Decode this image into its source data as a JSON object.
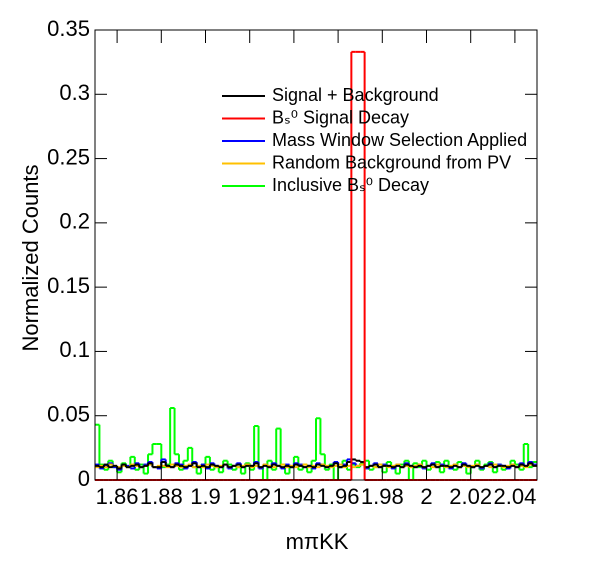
{
  "chart_data": {
    "type": "histogram",
    "xlabel": "mπKK",
    "ylabel": "Normalized Counts",
    "xlim": [
      1.85,
      2.05
    ],
    "ylim": [
      0,
      0.35
    ],
    "xticks": [
      1.86,
      1.88,
      1.9,
      1.92,
      1.94,
      1.96,
      1.98,
      2,
      2.02,
      2.04
    ],
    "yticks": [
      0,
      0.05,
      0.1,
      0.15,
      0.2,
      0.25,
      0.3,
      0.35
    ],
    "legend": "top-right",
    "bins": [
      1.85,
      1.852,
      1.854,
      1.856,
      1.858,
      1.86,
      1.862,
      1.864,
      1.866,
      1.868,
      1.87,
      1.872,
      1.874,
      1.876,
      1.878,
      1.88,
      1.882,
      1.884,
      1.886,
      1.888,
      1.89,
      1.892,
      1.894,
      1.896,
      1.898,
      1.9,
      1.902,
      1.904,
      1.906,
      1.908,
      1.91,
      1.912,
      1.914,
      1.916,
      1.918,
      1.92,
      1.922,
      1.924,
      1.926,
      1.928,
      1.93,
      1.932,
      1.934,
      1.936,
      1.938,
      1.94,
      1.942,
      1.944,
      1.946,
      1.948,
      1.95,
      1.952,
      1.954,
      1.956,
      1.958,
      1.96,
      1.962,
      1.964,
      1.966,
      1.968,
      1.97,
      1.972,
      1.974,
      1.976,
      1.978,
      1.98,
      1.982,
      1.984,
      1.986,
      1.988,
      1.99,
      1.992,
      1.994,
      1.996,
      1.998,
      2,
      2.002,
      2.004,
      2.006,
      2.008,
      2.01,
      2.012,
      2.014,
      2.016,
      2.018,
      2.02,
      2.022,
      2.024,
      2.026,
      2.028,
      2.03,
      2.032,
      2.034,
      2.036,
      2.038,
      2.04,
      2.042,
      2.044,
      2.046,
      2.048,
      2.05
    ],
    "series": [
      {
        "name": "Signal + Background",
        "color": "#000000",
        "values": [
          0.011,
          0.01,
          0.012,
          0.01,
          0.011,
          0.009,
          0.012,
          0.01,
          0.011,
          0.012,
          0.01,
          0.011,
          0.013,
          0.01,
          0.01,
          0.014,
          0.011,
          0.01,
          0.012,
          0.011,
          0.01,
          0.011,
          0.013,
          0.01,
          0.011,
          0.01,
          0.012,
          0.011,
          0.01,
          0.012,
          0.01,
          0.011,
          0.012,
          0.01,
          0.011,
          0.011,
          0.013,
          0.01,
          0.011,
          0.01,
          0.012,
          0.011,
          0.01,
          0.011,
          0.01,
          0.012,
          0.011,
          0.01,
          0.011,
          0.01,
          0.012,
          0.011,
          0.01,
          0.011,
          0.013,
          0.01,
          0.011,
          0.014,
          0.016,
          0.015,
          0.014,
          0.01,
          0.011,
          0.012,
          0.01,
          0.011,
          0.011,
          0.01,
          0.011,
          0.01,
          0.012,
          0.011,
          0.01,
          0.011,
          0.01,
          0.011,
          0.012,
          0.01,
          0.011,
          0.011,
          0.01,
          0.011,
          0.01,
          0.012,
          0.011,
          0.01,
          0.011,
          0.01,
          0.011,
          0.012,
          0.01,
          0.011,
          0.011,
          0.01,
          0.011,
          0.01,
          0.012,
          0.011,
          0.013,
          0.011
        ]
      },
      {
        "name": "Bₛ⁰ Signal Decay",
        "color": "#ff0000",
        "values": [
          0,
          0,
          0,
          0,
          0,
          0,
          0,
          0,
          0,
          0,
          0,
          0,
          0,
          0,
          0,
          0,
          0,
          0,
          0,
          0,
          0,
          0,
          0,
          0,
          0,
          0,
          0,
          0,
          0,
          0,
          0,
          0,
          0,
          0,
          0,
          0,
          0,
          0,
          0,
          0,
          0,
          0,
          0,
          0,
          0,
          0,
          0,
          0,
          0,
          0,
          0,
          0,
          0,
          0,
          0,
          0,
          0,
          0,
          0.333,
          0.333,
          0.333,
          0,
          0,
          0,
          0,
          0,
          0,
          0,
          0,
          0,
          0,
          0,
          0,
          0,
          0,
          0,
          0,
          0,
          0,
          0,
          0,
          0,
          0,
          0,
          0,
          0,
          0,
          0,
          0,
          0,
          0,
          0,
          0,
          0,
          0,
          0,
          0,
          0,
          0,
          0
        ]
      },
      {
        "name": "Mass Window Selection Applied",
        "color": "#0000ff",
        "values": [
          0.012,
          0.009,
          0.011,
          0.013,
          0.01,
          0.008,
          0.012,
          0.011,
          0.009,
          0.013,
          0.01,
          0.012,
          0.014,
          0.01,
          0.009,
          0.016,
          0.011,
          0.01,
          0.013,
          0.012,
          0.009,
          0.011,
          0.014,
          0.01,
          0.012,
          0.009,
          0.013,
          0.011,
          0.01,
          0.012,
          0.009,
          0.011,
          0.013,
          0.01,
          0.012,
          0.011,
          0.014,
          0.009,
          0.012,
          0.01,
          0.013,
          0.011,
          0.009,
          0.012,
          0.01,
          0.013,
          0.012,
          0.01,
          0.011,
          0.009,
          0.013,
          0.012,
          0.01,
          0.011,
          0.014,
          0.01,
          0.012,
          0.016,
          0.013,
          0.011,
          0.012,
          0.009,
          0.011,
          0.013,
          0.01,
          0.012,
          0.011,
          0.009,
          0.012,
          0.01,
          0.013,
          0.011,
          0.01,
          0.012,
          0.009,
          0.011,
          0.013,
          0.01,
          0.012,
          0.011,
          0.009,
          0.012,
          0.01,
          0.013,
          0.011,
          0.01,
          0.012,
          0.009,
          0.011,
          0.013,
          0.01,
          0.012,
          0.011,
          0.009,
          0.012,
          0.01,
          0.013,
          0.011,
          0.014,
          0.012
        ]
      },
      {
        "name": "Random Background from PV",
        "color": "#ffc000",
        "values": [
          0.01,
          0.011,
          0.01,
          0.012,
          0.011,
          0.01,
          0.011,
          0.01,
          0.012,
          0.011,
          0.01,
          0.011,
          0.012,
          0.01,
          0.011,
          0.011,
          0.01,
          0.012,
          0.011,
          0.01,
          0.011,
          0.012,
          0.01,
          0.011,
          0.01,
          0.012,
          0.011,
          0.01,
          0.011,
          0.012,
          0.01,
          0.011,
          0.01,
          0.011,
          0.012,
          0.01,
          0.011,
          0.01,
          0.012,
          0.011,
          0.01,
          0.011,
          0.012,
          0.01,
          0.011,
          0.01,
          0.011,
          0.012,
          0.01,
          0.011,
          0.01,
          0.012,
          0.011,
          0.01,
          0.011,
          0.012,
          0.01,
          0.011,
          0.01,
          0.011,
          0.012,
          0.01,
          0.011,
          0.01,
          0.012,
          0.011,
          0.01,
          0.011,
          0.012,
          0.01,
          0.011,
          0.01,
          0.011,
          0.012,
          0.01,
          0.011,
          0.01,
          0.012,
          0.011,
          0.01,
          0.011,
          0.012,
          0.01,
          0.011,
          0.01,
          0.011,
          0.012,
          0.01,
          0.011,
          0.01,
          0.012,
          0.011,
          0.01,
          0.011,
          0.012,
          0.01,
          0.011,
          0.01,
          0.012,
          0.011
        ]
      },
      {
        "name": "Inclusive Bₛ⁰ Decay",
        "color": "#00ff00",
        "values": [
          0.043,
          0.012,
          0.008,
          0.015,
          0.01,
          0.006,
          0.013,
          0.01,
          0.018,
          0.008,
          0.012,
          0.005,
          0.02,
          0.028,
          0.028,
          0.01,
          0.012,
          0.056,
          0.02,
          0.008,
          0.015,
          0.025,
          0.01,
          0.005,
          0.012,
          0.018,
          0.008,
          0.01,
          0.006,
          0.015,
          0.012,
          0.008,
          0.01,
          0.005,
          0.013,
          0.008,
          0.042,
          0.01,
          0,
          0.015,
          0.008,
          0.04,
          0.012,
          0.005,
          0.01,
          0.018,
          0.008,
          0.012,
          0.006,
          0.015,
          0.048,
          0.02,
          0.008,
          0.012,
          0,
          0.01,
          0.015,
          0.008,
          0.012,
          0.01,
          0.013,
          0.015,
          0.008,
          0.01,
          0.012,
          0.006,
          0.014,
          0.01,
          0.005,
          0.012,
          0.015,
          0,
          0.013,
          0.01,
          0.015,
          0.008,
          0.012,
          0.014,
          0.006,
          0.015,
          0.01,
          0.008,
          0.014,
          0.012,
          0.005,
          0.01,
          0.015,
          0.008,
          0.012,
          0.014,
          0.006,
          0.012,
          0.008,
          0.01,
          0.015,
          0.012,
          0.008,
          0.028,
          0.01,
          0.014
        ]
      }
    ]
  }
}
